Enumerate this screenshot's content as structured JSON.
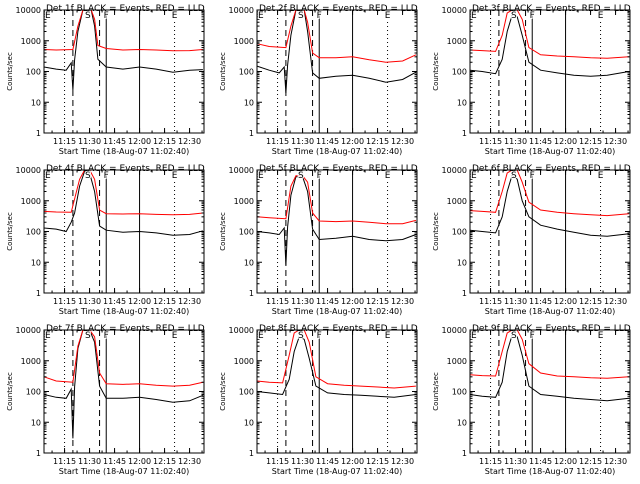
{
  "figure": {
    "xlabel": "Start Time (18-Aug-07 11:02:40)",
    "ylabel": "Counts/sec",
    "series_labels": [
      "BLACK = Events",
      "RED = LLD"
    ],
    "colors": {
      "events": "#000000",
      "lld": "#ff0000",
      "axes": "#000000",
      "background": "#ffffff"
    }
  },
  "chart_data": [
    {
      "type": "line",
      "title": "Det 1f BLACK = Events, RED = LLD",
      "xlim": [
        11.0444,
        12.6444
      ],
      "ylim": [
        1,
        10000
      ],
      "yscale": "log",
      "x_ticks": [
        "11:15",
        "11:30",
        "11:45",
        "12:00",
        "12:15",
        "12:30"
      ],
      "y_ticks": [
        "1",
        "10",
        "100",
        "1000",
        "10000"
      ],
      "markers": [
        "E",
        "S",
        "F",
        "E"
      ],
      "series": [
        {
          "name": "Events",
          "color": "#000000",
          "x": [
            "11:02:40",
            "11:10",
            "11:16",
            "11:19",
            "11:20",
            "11:21",
            "11:23",
            "11:26",
            "11:29",
            "11:31",
            "11:33",
            "11:35",
            "11:40",
            "11:50",
            "12:00",
            "12:10",
            "12:20",
            "12:30",
            "12:38"
          ],
          "y": [
            140,
            120,
            110,
            190,
            25,
            240,
            2000,
            10000,
            10000,
            10000,
            3000,
            250,
            140,
            120,
            140,
            120,
            95,
            110,
            115
          ]
        },
        {
          "name": "LLD",
          "color": "#ff0000",
          "x": [
            "11:02:40",
            "11:10",
            "11:20",
            "11:23",
            "11:26",
            "11:29",
            "11:31",
            "11:33",
            "11:35",
            "11:40",
            "11:50",
            "12:00",
            "12:10",
            "12:20",
            "12:30",
            "12:38"
          ],
          "y": [
            520,
            500,
            520,
            3000,
            10000,
            10000,
            10000,
            5000,
            700,
            560,
            500,
            520,
            500,
            470,
            480,
            520
          ]
        }
      ]
    },
    {
      "type": "line",
      "title": "Det 2f BLACK = Events, RED = LLD",
      "xlim": [
        11.0444,
        12.6444
      ],
      "ylim": [
        1,
        10000
      ],
      "yscale": "log",
      "x_ticks": [
        "11:15",
        "11:30",
        "11:45",
        "12:00",
        "12:15",
        "12:30"
      ],
      "y_ticks": [
        "1",
        "10",
        "100",
        "1000",
        "10000"
      ],
      "markers": [
        "E",
        "S",
        "F",
        "E"
      ],
      "series": [
        {
          "name": "Events",
          "color": "#000000",
          "x": [
            "11:02:40",
            "11:10",
            "11:16",
            "11:19",
            "11:20",
            "11:21",
            "11:23",
            "11:26",
            "11:29",
            "11:31",
            "11:33",
            "11:36",
            "11:40",
            "11:50",
            "12:00",
            "12:10",
            "12:20",
            "12:30",
            "12:38"
          ],
          "y": [
            150,
            110,
            90,
            140,
            20,
            160,
            1500,
            10000,
            10000,
            10000,
            2000,
            90,
            60,
            70,
            75,
            60,
            45,
            55,
            95
          ]
        },
        {
          "name": "LLD",
          "color": "#ff0000",
          "x": [
            "11:02:40",
            "11:10",
            "11:20",
            "11:23",
            "11:26",
            "11:29",
            "11:31",
            "11:33",
            "11:36",
            "11:40",
            "11:50",
            "12:00",
            "12:10",
            "12:20",
            "12:30",
            "12:38"
          ],
          "y": [
            800,
            650,
            600,
            3000,
            10000,
            10000,
            10000,
            4000,
            400,
            280,
            280,
            300,
            240,
            200,
            220,
            350
          ]
        }
      ]
    },
    {
      "type": "line",
      "title": "Det 3f BLACK = Events, RED = LLD",
      "xlim": [
        11.0444,
        12.6444
      ],
      "ylim": [
        1,
        10000
      ],
      "yscale": "log",
      "x_ticks": [
        "11:15",
        "11:30",
        "11:45",
        "12:00",
        "12:15",
        "12:30"
      ],
      "y_ticks": [
        "1",
        "10",
        "100",
        "1000",
        "10000"
      ],
      "markers": [
        "E",
        "S",
        "F",
        "E"
      ],
      "series": [
        {
          "name": "Events",
          "color": "#000000",
          "x": [
            "11:02:40",
            "11:10",
            "11:18",
            "11:22",
            "11:25",
            "11:28",
            "11:31",
            "11:34",
            "11:38",
            "11:45",
            "11:55",
            "12:05",
            "12:15",
            "12:25",
            "12:38"
          ],
          "y": [
            110,
            100,
            85,
            250,
            2000,
            7000,
            6000,
            1500,
            200,
            110,
            90,
            75,
            70,
            75,
            100
          ]
        },
        {
          "name": "LLD",
          "color": "#ff0000",
          "x": [
            "11:02:40",
            "11:10",
            "11:18",
            "11:22",
            "11:25",
            "11:28",
            "11:31",
            "11:34",
            "11:38",
            "11:45",
            "11:55",
            "12:05",
            "12:15",
            "12:25",
            "12:38"
          ],
          "y": [
            500,
            480,
            450,
            1500,
            8000,
            10000,
            10000,
            5000,
            600,
            350,
            320,
            300,
            280,
            270,
            300
          ]
        }
      ]
    },
    {
      "type": "line",
      "title": "Det 4f BLACK = Events, RED = LLD",
      "xlim": [
        11.0444,
        12.6444
      ],
      "ylim": [
        1,
        10000
      ],
      "yscale": "log",
      "x_ticks": [
        "11:15",
        "11:30",
        "11:45",
        "12:00",
        "12:15",
        "12:30"
      ],
      "y_ticks": [
        "1",
        "10",
        "100",
        "1000",
        "10000"
      ],
      "markers": [
        "E",
        "S",
        "F",
        "E"
      ],
      "series": [
        {
          "name": "Events",
          "color": "#000000",
          "x": [
            "11:02:40",
            "11:10",
            "11:16",
            "11:19",
            "11:21",
            "11:24",
            "11:27",
            "11:30",
            "11:33",
            "11:36",
            "11:40",
            "11:50",
            "12:00",
            "12:10",
            "12:20",
            "12:30",
            "12:38"
          ],
          "y": [
            130,
            120,
            100,
            200,
            400,
            3000,
            9000,
            8000,
            2000,
            150,
            110,
            95,
            100,
            90,
            75,
            80,
            105
          ]
        },
        {
          "name": "LLD",
          "color": "#ff0000",
          "x": [
            "11:02:40",
            "11:10",
            "11:19",
            "11:24",
            "11:27",
            "11:30",
            "11:33",
            "11:36",
            "11:40",
            "11:50",
            "12:00",
            "12:10",
            "12:20",
            "12:30",
            "12:38"
          ],
          "y": [
            450,
            430,
            420,
            5000,
            10000,
            10000,
            5000,
            500,
            380,
            370,
            380,
            360,
            350,
            360,
            400
          ]
        }
      ]
    },
    {
      "type": "line",
      "title": "Det 5f BLACK = Events, RED = LLD",
      "xlim": [
        11.0444,
        12.6444
      ],
      "ylim": [
        1,
        10000
      ],
      "yscale": "log",
      "x_ticks": [
        "11:15",
        "11:30",
        "11:45",
        "12:00",
        "12:15",
        "12:30"
      ],
      "y_ticks": [
        "1",
        "10",
        "100",
        "1000",
        "10000"
      ],
      "markers": [
        "E",
        "S",
        "F",
        "E"
      ],
      "series": [
        {
          "name": "Events",
          "color": "#000000",
          "x": [
            "11:02:40",
            "11:10",
            "11:16",
            "11:19",
            "11:20",
            "11:21",
            "11:23",
            "11:26",
            "11:30",
            "11:33",
            "11:36",
            "11:40",
            "11:50",
            "12:00",
            "12:10",
            "12:20",
            "12:30",
            "12:38"
          ],
          "y": [
            100,
            90,
            80,
            130,
            8,
            140,
            1500,
            6000,
            6000,
            2000,
            120,
            55,
            60,
            70,
            55,
            50,
            55,
            80
          ]
        },
        {
          "name": "LLD",
          "color": "#ff0000",
          "x": [
            "11:02:40",
            "11:10",
            "11:20",
            "11:23",
            "11:26",
            "11:30",
            "11:33",
            "11:36",
            "11:40",
            "11:50",
            "12:00",
            "12:10",
            "12:20",
            "12:30",
            "12:38"
          ],
          "y": [
            300,
            280,
            260,
            3000,
            6500,
            6500,
            4000,
            400,
            220,
            210,
            220,
            200,
            180,
            180,
            230
          ]
        }
      ]
    },
    {
      "type": "line",
      "title": "Det 6f BLACK = Events, RED = LLD",
      "xlim": [
        11.0444,
        12.6444
      ],
      "ylim": [
        1,
        10000
      ],
      "yscale": "log",
      "x_ticks": [
        "11:15",
        "11:30",
        "11:45",
        "12:00",
        "12:15",
        "12:30"
      ],
      "y_ticks": [
        "1",
        "10",
        "100",
        "1000",
        "10000"
      ],
      "markers": [
        "E",
        "S",
        "F",
        "E"
      ],
      "series": [
        {
          "name": "Events",
          "color": "#000000",
          "x": [
            "11:02:40",
            "11:10",
            "11:18",
            "11:22",
            "11:25",
            "11:28",
            "11:31",
            "11:34",
            "11:38",
            "11:45",
            "11:55",
            "12:05",
            "12:15",
            "12:25",
            "12:38"
          ],
          "y": [
            110,
            100,
            90,
            300,
            2000,
            7000,
            5000,
            1000,
            300,
            160,
            120,
            95,
            75,
            70,
            85
          ]
        },
        {
          "name": "LLD",
          "color": "#ff0000",
          "x": [
            "11:02:40",
            "11:10",
            "11:18",
            "11:22",
            "11:25",
            "11:28",
            "11:31",
            "11:34",
            "11:38",
            "11:45",
            "11:55",
            "12:05",
            "12:15",
            "12:25",
            "12:38"
          ],
          "y": [
            480,
            450,
            420,
            2000,
            8000,
            10000,
            10000,
            4000,
            900,
            500,
            420,
            380,
            350,
            330,
            380
          ]
        }
      ]
    },
    {
      "type": "line",
      "title": "Det 7f BLACK = Events, RED = LLD",
      "xlim": [
        11.0444,
        12.6444
      ],
      "ylim": [
        1,
        10000
      ],
      "yscale": "log",
      "x_ticks": [
        "11:15",
        "11:30",
        "11:45",
        "12:00",
        "12:15",
        "12:30"
      ],
      "y_ticks": [
        "1",
        "10",
        "100",
        "1000",
        "10000"
      ],
      "markers": [
        "E",
        "S",
        "F",
        "E"
      ],
      "series": [
        {
          "name": "Events",
          "color": "#000000",
          "x": [
            "11:02:40",
            "11:10",
            "11:16",
            "11:19",
            "11:20",
            "11:21",
            "11:23",
            "11:26",
            "11:30",
            "11:33",
            "11:36",
            "11:40",
            "11:50",
            "12:00",
            "12:10",
            "12:20",
            "12:30",
            "12:38"
          ],
          "y": [
            80,
            65,
            60,
            120,
            3,
            140,
            2500,
            10000,
            10000,
            4000,
            150,
            60,
            60,
            65,
            55,
            45,
            50,
            75
          ]
        },
        {
          "name": "LLD",
          "color": "#ff0000",
          "x": [
            "11:02:40",
            "11:10",
            "11:20",
            "11:23",
            "11:26",
            "11:30",
            "11:33",
            "11:36",
            "11:40",
            "11:50",
            "12:00",
            "12:10",
            "12:20",
            "12:30",
            "12:38"
          ],
          "y": [
            300,
            220,
            200,
            3000,
            10000,
            10000,
            6000,
            400,
            180,
            170,
            180,
            160,
            150,
            160,
            200
          ]
        }
      ]
    },
    {
      "type": "line",
      "title": "Det 8f BLACK = Events, RED = LLD",
      "xlim": [
        11.0444,
        12.6444
      ],
      "ylim": [
        1,
        10000
      ],
      "yscale": "log",
      "x_ticks": [
        "11:15",
        "11:30",
        "11:45",
        "12:00",
        "12:15",
        "12:30"
      ],
      "y_ticks": [
        "1",
        "10",
        "100",
        "1000",
        "10000"
      ],
      "markers": [
        "E",
        "S",
        "F",
        "E"
      ],
      "series": [
        {
          "name": "Events",
          "color": "#000000",
          "x": [
            "11:02:40",
            "11:10",
            "11:18",
            "11:22",
            "11:25",
            "11:28",
            "11:31",
            "11:34",
            "11:38",
            "11:45",
            "11:55",
            "12:05",
            "12:15",
            "12:25",
            "12:38"
          ],
          "y": [
            100,
            90,
            80,
            250,
            2000,
            6000,
            5000,
            1200,
            150,
            90,
            80,
            75,
            70,
            65,
            80
          ]
        },
        {
          "name": "LLD",
          "color": "#ff0000",
          "x": [
            "11:02:40",
            "11:10",
            "11:18",
            "11:22",
            "11:25",
            "11:28",
            "11:31",
            "11:34",
            "11:38",
            "11:45",
            "11:55",
            "12:05",
            "12:15",
            "12:25",
            "12:38"
          ],
          "y": [
            220,
            200,
            190,
            1500,
            8000,
            10000,
            10000,
            4000,
            300,
            180,
            160,
            150,
            140,
            130,
            150
          ]
        }
      ]
    },
    {
      "type": "line",
      "title": "Det 9f BLACK = Events, RED = LLD",
      "xlim": [
        11.0444,
        12.6444
      ],
      "ylim": [
        1,
        10000
      ],
      "yscale": "log",
      "x_ticks": [
        "11:15",
        "11:30",
        "11:45",
        "12:00",
        "12:15",
        "12:30"
      ],
      "y_ticks": [
        "1",
        "10",
        "100",
        "1000",
        "10000"
      ],
      "markers": [
        "E",
        "S",
        "F",
        "E"
      ],
      "series": [
        {
          "name": "Events",
          "color": "#000000",
          "x": [
            "11:02:40",
            "11:10",
            "11:18",
            "11:22",
            "11:25",
            "11:28",
            "11:31",
            "11:34",
            "11:38",
            "11:45",
            "11:55",
            "12:05",
            "12:15",
            "12:25",
            "12:38"
          ],
          "y": [
            80,
            70,
            65,
            200,
            2000,
            7000,
            6000,
            1500,
            150,
            80,
            70,
            60,
            55,
            50,
            60
          ]
        },
        {
          "name": "LLD",
          "color": "#ff0000",
          "x": [
            "11:02:40",
            "11:10",
            "11:18",
            "11:22",
            "11:25",
            "11:28",
            "11:31",
            "11:34",
            "11:38",
            "11:45",
            "11:55",
            "12:05",
            "12:15",
            "12:25",
            "12:38"
          ],
          "y": [
            350,
            330,
            320,
            2000,
            8000,
            10000,
            10000,
            5000,
            800,
            400,
            320,
            300,
            280,
            270,
            300
          ]
        }
      ]
    }
  ]
}
